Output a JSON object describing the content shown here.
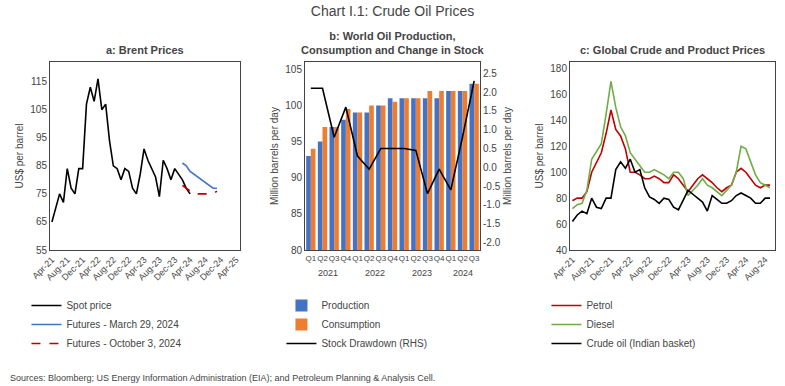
{
  "title": "Chart I.1: Crude Oil Prices",
  "annotations": [
    "Sources: Bloomberg; US Energy Information Administration (EIA); and Petroleum Planning & Analysis Cell."
  ],
  "chart_data": [
    {
      "type": "line",
      "title": "a: Brent Prices",
      "ylabel": "US$ per barrel",
      "xlim": [
        -0.5,
        49
      ],
      "xticks": [
        {
          "value": 0,
          "label": "Apr-21"
        },
        {
          "value": 4,
          "label": "Aug-21"
        },
        {
          "value": 8,
          "label": "Dec-21"
        },
        {
          "value": 12,
          "label": "Apr-22"
        },
        {
          "value": 16,
          "label": "Aug-22"
        },
        {
          "value": 20,
          "label": "Dec-22"
        },
        {
          "value": 24,
          "label": "Apr-23"
        },
        {
          "value": 28,
          "label": "Aug-23"
        },
        {
          "value": 32,
          "label": "Dec-23"
        },
        {
          "value": 36,
          "label": "Apr-24"
        },
        {
          "value": 40,
          "label": "Aug-24"
        },
        {
          "value": 44,
          "label": "Dec-24"
        },
        {
          "value": 48,
          "label": "Apr-25"
        }
      ],
      "ylim": [
        55,
        122
      ],
      "yticks": [
        55,
        65,
        75,
        85,
        95,
        105,
        115
      ],
      "grid": false,
      "legend": "below",
      "series": [
        {
          "name": "Spot price",
          "color": "#000000",
          "line_style": "solid",
          "x": [
            0,
            1,
            2,
            3,
            4,
            5,
            6,
            7,
            8,
            9,
            10,
            11,
            12,
            13,
            14,
            15,
            16,
            17,
            18,
            19,
            20,
            21,
            22,
            23,
            24,
            25,
            26,
            27,
            28,
            29,
            30,
            31,
            32,
            33,
            34,
            35,
            36,
            37,
            38,
            39
          ],
          "values": [
            65,
            70,
            75,
            72,
            84,
            77,
            75,
            84,
            84,
            107,
            113,
            108,
            116,
            105,
            107,
            94,
            85,
            84,
            80,
            84,
            83,
            77,
            75,
            82,
            91,
            87,
            84,
            81,
            74,
            87,
            84,
            80,
            84,
            82,
            80,
            77,
            75,
            null,
            null,
            null
          ]
        },
        {
          "name": "Futures - March 29, 2024",
          "color": "#4472C4",
          "line_style": "solid",
          "x": [
            34,
            35,
            36,
            37,
            38,
            39,
            40,
            41,
            42,
            43
          ],
          "values": [
            86,
            85,
            83,
            82,
            81,
            80,
            79,
            78,
            77,
            77
          ]
        },
        {
          "name": "Futures - October 3, 2024",
          "color": "#C00000",
          "line_style": "dashed",
          "x": [
            34,
            35,
            36,
            37,
            38,
            39,
            40,
            41,
            42,
            43
          ],
          "values": [
            78,
            77,
            76,
            75,
            75,
            75,
            75,
            75,
            75,
            76
          ]
        }
      ]
    },
    {
      "type": "bar",
      "title": "b: World Oil Production,\nConsumption and Change in Stock",
      "ylabel": "Million barrels per day",
      "y2label": "Million barrels per day",
      "categories": [
        "Q1",
        "Q2",
        "Q3",
        "Q4",
        "Q1",
        "Q2",
        "Q3",
        "Q4",
        "Q1",
        "Q2",
        "Q3",
        "Q4",
        "Q1",
        "Q2",
        "Q3"
      ],
      "years": [
        "2021",
        "2021",
        "2021",
        "2021",
        "2022",
        "2022",
        "2022",
        "2022",
        "2023",
        "2023",
        "2023",
        "2023",
        "2024",
        "2024",
        "2024"
      ],
      "ylim": [
        80,
        106
      ],
      "yticks": [
        80,
        85,
        90,
        95,
        100,
        105
      ],
      "y2lim": [
        -2.2,
        2.8
      ],
      "y2ticks": [
        {
          "value": -2,
          "label": "-2.0"
        },
        -1.5,
        {
          "value": -1,
          "label": "-1.0"
        },
        -0.5,
        {
          "value": 0,
          "label": "0.0"
        },
        0.5,
        {
          "value": 1,
          "label": "1.0"
        },
        1.5,
        {
          "value": 2,
          "label": "2.0"
        },
        2.5
      ],
      "grid": false,
      "legend": "below",
      "series": [
        {
          "name": "Production",
          "type": "bar",
          "color": "#4472C4",
          "values": [
            93.0,
            95.0,
            97.0,
            98.0,
            99.0,
            99.0,
            100.0,
            101.0,
            101.0,
            101.0,
            101.0,
            101.0,
            102.0,
            102.0,
            103.0
          ]
        },
        {
          "name": "Consumption",
          "type": "bar",
          "color": "#ED7D31",
          "values": [
            94.0,
            97.0,
            97.0,
            99.5,
            99.0,
            100.0,
            100.0,
            100.5,
            101.0,
            101.0,
            102.0,
            102.0,
            102.0,
            102.0,
            103.0
          ]
        },
        {
          "name": "Stock Drawdown (RHS)",
          "type": "line",
          "color": "#000000",
          "axis": "y2",
          "values": [
            2.1,
            2.1,
            0.8,
            1.6,
            0.3,
            -0.05,
            0.5,
            0.5,
            0.5,
            0.45,
            -0.7,
            -0.05,
            -0.6,
            0.8,
            2.3
          ]
        }
      ]
    },
    {
      "type": "line",
      "title": "c: Global Crude and Product Prices",
      "ylabel": "US$ per barrel",
      "xlim": [
        -0.5,
        42
      ],
      "xticks": [
        {
          "value": 0,
          "label": "Apr-21"
        },
        {
          "value": 4,
          "label": "Aug-21"
        },
        {
          "value": 8,
          "label": "Dec-21"
        },
        {
          "value": 12,
          "label": "Apr-22"
        },
        {
          "value": 16,
          "label": "Aug-22"
        },
        {
          "value": 20,
          "label": "Dec-22"
        },
        {
          "value": 24,
          "label": "Apr-23"
        },
        {
          "value": 28,
          "label": "Aug-23"
        },
        {
          "value": 32,
          "label": "Dec-23"
        },
        {
          "value": 36,
          "label": "Apr-24"
        },
        {
          "value": 40,
          "label": "Aug-24"
        }
      ],
      "ylim": [
        40,
        185
      ],
      "yticks": [
        40,
        60,
        80,
        100,
        120,
        140,
        160,
        180
      ],
      "grid": false,
      "legend": "below",
      "series": [
        {
          "name": "Petrol",
          "color": "#C00000",
          "line_style": "solid",
          "x": [
            0,
            1,
            2,
            3,
            4,
            5,
            6,
            7,
            8,
            9,
            10,
            11,
            12,
            13,
            14,
            15,
            16,
            17,
            18,
            19,
            20,
            21,
            22,
            23,
            24,
            25,
            26,
            27,
            28,
            29,
            30,
            31,
            32,
            33,
            34,
            35,
            36,
            37,
            38,
            39,
            40,
            41
          ],
          "values": [
            78,
            80,
            80,
            85,
            100,
            108,
            115,
            130,
            148,
            133,
            128,
            118,
            100,
            100,
            98,
            95,
            95,
            97,
            95,
            92,
            92,
            98,
            95,
            90,
            85,
            90,
            95,
            98,
            95,
            92,
            88,
            85,
            88,
            90,
            100,
            103,
            100,
            95,
            90,
            88,
            90,
            90
          ]
        },
        {
          "name": "Diesel",
          "color": "#70AD47",
          "line_style": "solid",
          "x": [
            0,
            1,
            2,
            3,
            4,
            5,
            6,
            7,
            8,
            9,
            10,
            11,
            12,
            13,
            14,
            15,
            16,
            17,
            18,
            19,
            20,
            21,
            22,
            23,
            24,
            25,
            26,
            27,
            28,
            29,
            30,
            31,
            32,
            33,
            34,
            35,
            36,
            37,
            38,
            39,
            40,
            41
          ],
          "values": [
            72,
            75,
            76,
            86,
            110,
            116,
            122,
            145,
            170,
            150,
            135,
            128,
            115,
            110,
            105,
            100,
            100,
            102,
            100,
            98,
            95,
            100,
            100,
            95,
            82,
            86,
            90,
            95,
            90,
            88,
            85,
            82,
            86,
            90,
            100,
            120,
            118,
            108,
            98,
            92,
            90,
            88
          ]
        },
        {
          "name": "Crude oil (Indian basket)",
          "color": "#000000",
          "line_style": "solid",
          "x": [
            0,
            1,
            2,
            3,
            4,
            5,
            6,
            7,
            8,
            9,
            10,
            11,
            12,
            13,
            14,
            15,
            16,
            17,
            18,
            19,
            20,
            21,
            22,
            23,
            24,
            25,
            26,
            27,
            28,
            29,
            30,
            31,
            32,
            33,
            34,
            35,
            36,
            37,
            38,
            39,
            40,
            41
          ],
          "values": [
            62,
            67,
            70,
            68,
            80,
            73,
            72,
            80,
            80,
            102,
            108,
            103,
            110,
            100,
            102,
            88,
            81,
            79,
            76,
            80,
            79,
            73,
            71,
            78,
            86,
            83,
            80,
            77,
            70,
            82,
            79,
            76,
            76,
            78,
            82,
            84,
            82,
            80,
            76,
            76,
            80,
            80
          ]
        }
      ]
    }
  ]
}
